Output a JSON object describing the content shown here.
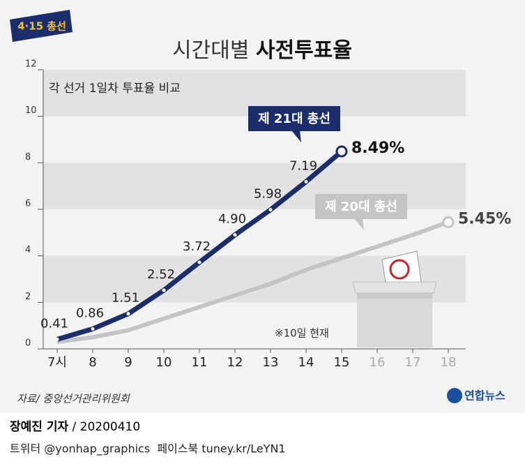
{
  "chart_data": {
    "type": "line",
    "badge": "4·15 총선",
    "title": {
      "light": "시간대별",
      "bold": "사전투표율"
    },
    "subtitle": "각 선거 1일차 투표율 비교",
    "categories": [
      "7시",
      "8",
      "9",
      "10",
      "11",
      "12",
      "13",
      "14",
      "15",
      "16",
      "17",
      "18"
    ],
    "series": [
      {
        "name": "제 21대 총선",
        "color": "#1c2d6b",
        "values": [
          0.41,
          0.86,
          1.51,
          2.52,
          3.72,
          4.9,
          5.98,
          7.19,
          8.49,
          null,
          null,
          null
        ],
        "value_labels": [
          "0.41",
          "0.86",
          "1.51",
          "2.52",
          "3.72",
          "4.90",
          "5.98",
          "7.19",
          "8.49%",
          null,
          null,
          null
        ]
      },
      {
        "name": "제 20대 총선",
        "color": "#c4c4c4",
        "values": [
          0.3,
          0.5,
          0.8,
          1.3,
          1.8,
          2.3,
          2.8,
          3.4,
          3.9,
          4.4,
          4.9,
          5.45
        ],
        "value_labels": [
          null,
          null,
          null,
          null,
          null,
          null,
          null,
          null,
          null,
          null,
          null,
          "5.45%"
        ]
      }
    ],
    "ylim": [
      0,
      12
    ],
    "yticks": [
      0,
      2,
      4,
      6,
      8,
      10,
      12
    ],
    "grid": true,
    "note": "※10일 현재",
    "source": "자료/ 중앙선거관리위원회",
    "logo": "연합뉴스",
    "byline": {
      "author": "장예진 기자",
      "date": "/ 20200410"
    },
    "social": "트위터 @yonhap_graphics  페이스북 tuney.kr/LeYN1"
  }
}
